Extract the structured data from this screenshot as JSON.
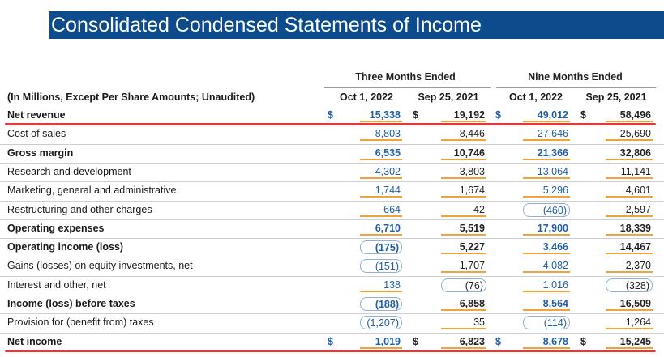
{
  "title": "Consolidated Condensed Statements of Income",
  "header": {
    "label": "(In Millions, Except Per Share Amounts; Unaudited)",
    "groups": [
      "Three Months Ended",
      "Nine Months Ended"
    ],
    "columns": [
      "Oct 1, 2022",
      "Sep 25, 2021",
      "Oct 1, 2022",
      "Sep 25, 2021"
    ]
  },
  "currency_symbol": "$",
  "rows": [
    {
      "label": "Net revenue",
      "bold": true,
      "dollar": true,
      "values": [
        "15,338",
        "19,192",
        "49,012",
        "58,496"
      ]
    },
    {
      "label": "Cost of sales",
      "bold": false,
      "dollar": false,
      "values": [
        "8,803",
        "8,446",
        "27,646",
        "25,690"
      ]
    },
    {
      "label": "Gross margin",
      "bold": true,
      "dollar": false,
      "values": [
        "6,535",
        "10,746",
        "21,366",
        "32,806"
      ]
    },
    {
      "label": "Research and development",
      "bold": false,
      "dollar": false,
      "values": [
        "4,302",
        "3,803",
        "13,064",
        "11,141"
      ]
    },
    {
      "label": "Marketing, general and administrative",
      "bold": false,
      "dollar": false,
      "values": [
        "1,744",
        "1,674",
        "5,296",
        "4,601"
      ]
    },
    {
      "label": "Restructuring and other charges",
      "bold": false,
      "dollar": false,
      "values": [
        "664",
        "42",
        "(460)",
        "2,597"
      ]
    },
    {
      "label": "Operating expenses",
      "bold": true,
      "dollar": false,
      "values": [
        "6,710",
        "5,519",
        "17,900",
        "18,339"
      ]
    },
    {
      "label": "Operating income (loss)",
      "bold": true,
      "dollar": false,
      "values": [
        "(175)",
        "5,227",
        "3,466",
        "14,467"
      ]
    },
    {
      "label": "Gains (losses) on equity investments, net",
      "bold": false,
      "dollar": false,
      "values": [
        "(151)",
        "1,707",
        "4,082",
        "2,370"
      ]
    },
    {
      "label": "Interest and other, net",
      "bold": false,
      "dollar": false,
      "values": [
        "138",
        "(76)",
        "1,016",
        "(328)"
      ]
    },
    {
      "label": "Income (loss) before taxes",
      "bold": true,
      "dollar": false,
      "values": [
        "(188)",
        "6,858",
        "8,564",
        "16,509"
      ]
    },
    {
      "label": "Provision for (benefit from) taxes",
      "bold": false,
      "dollar": false,
      "values": [
        "(1,207)",
        "35",
        "(114)",
        "1,264"
      ]
    },
    {
      "label": "Net income",
      "bold": true,
      "dollar": true,
      "values": [
        "1,019",
        "6,823",
        "8,678",
        "15,245"
      ]
    }
  ],
  "colors": {
    "title_bg": "#0d4b8c",
    "current_period": "#1f5fa8",
    "underline": "#f2a23c",
    "highlight": "#e23a3a"
  }
}
